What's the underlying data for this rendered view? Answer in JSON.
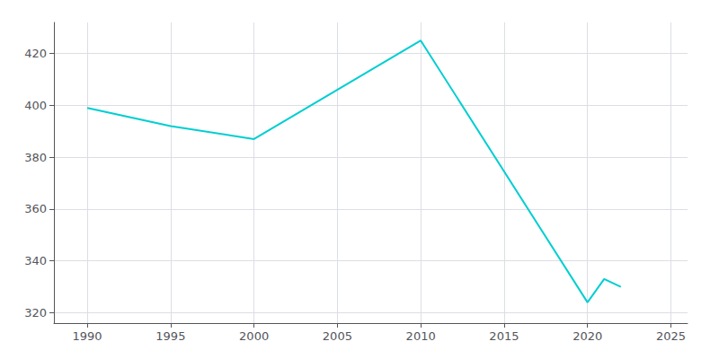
{
  "chart_data": {
    "type": "line",
    "x": [
      1990,
      1995,
      2000,
      2010,
      2020,
      2021,
      2022
    ],
    "values": [
      399,
      392,
      387,
      425,
      324,
      333,
      330
    ],
    "color": "#00CED1",
    "xlim": [
      1988,
      2026
    ],
    "xticks": [
      1990,
      1995,
      2000,
      2005,
      2010,
      2015,
      2020,
      2025
    ],
    "ylim": [
      316,
      432
    ],
    "yticks": [
      320,
      340,
      360,
      380,
      400,
      420
    ],
    "grid": true
  }
}
